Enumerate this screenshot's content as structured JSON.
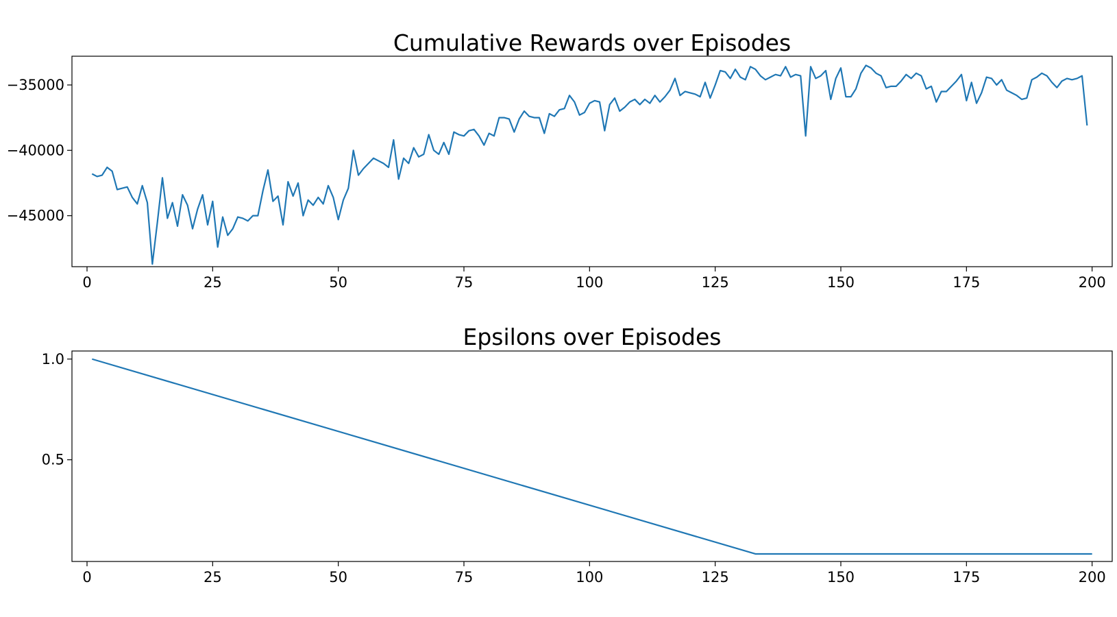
{
  "colors": {
    "series": "#1f77b4",
    "axes": "#000000",
    "background": "#ffffff"
  },
  "chart_data": [
    {
      "type": "line",
      "title": "Cumulative Rewards over Episodes",
      "xlabel": "",
      "ylabel": "",
      "xlim": [
        -3,
        204
      ],
      "ylim": [
        -48900,
        -32800
      ],
      "xticks": [
        0,
        25,
        50,
        75,
        100,
        125,
        150,
        175,
        200
      ],
      "yticks": [
        -45000,
        -40000,
        -35000
      ],
      "ytick_labels": [
        "−45000",
        "−40000",
        "−35000"
      ],
      "grid": false,
      "legend": "none",
      "series": [
        {
          "x_start": 1,
          "x_step": 1,
          "values": [
            -41800,
            -42000,
            -41900,
            -41300,
            -41600,
            -43000,
            -42900,
            -42800,
            -43600,
            -44100,
            -42700,
            -44000,
            -48700,
            -45500,
            -42100,
            -45200,
            -44000,
            -45800,
            -43400,
            -44200,
            -46000,
            -44500,
            -43400,
            -45700,
            -43900,
            -47400,
            -45100,
            -46500,
            -46000,
            -45100,
            -45200,
            -45400,
            -45000,
            -45000,
            -43100,
            -41500,
            -43900,
            -43500,
            -45700,
            -42400,
            -43500,
            -42500,
            -45000,
            -43800,
            -44200,
            -43600,
            -44100,
            -42700,
            -43600,
            -45300,
            -43800,
            -42900,
            -40000,
            -41900,
            -41400,
            -41000,
            -40600,
            -40800,
            -41000,
            -41300,
            -39200,
            -42200,
            -40600,
            -41000,
            -39800,
            -40500,
            -40300,
            -38800,
            -40000,
            -40300,
            -39400,
            -40300,
            -38600,
            -38800,
            -38900,
            -38500,
            -38400,
            -38900,
            -39600,
            -38700,
            -38900,
            -37500,
            -37500,
            -37600,
            -38600,
            -37600,
            -37000,
            -37400,
            -37500,
            -37500,
            -38700,
            -37200,
            -37400,
            -36900,
            -36800,
            -35800,
            -36300,
            -37300,
            -37100,
            -36400,
            -36200,
            -36300,
            -38500,
            -36500,
            -36000,
            -37000,
            -36700,
            -36300,
            -36100,
            -36500,
            -36100,
            -36400,
            -35800,
            -36300,
            -35900,
            -35400,
            -34500,
            -35800,
            -35500,
            -35600,
            -35700,
            -35900,
            -34800,
            -36000,
            -35000,
            -33900,
            -34000,
            -34500,
            -33800,
            -34400,
            -34600,
            -33600,
            -33800,
            -34300,
            -34600,
            -34400,
            -34200,
            -34300,
            -33600,
            -34400,
            -34200,
            -34300,
            -38900,
            -33600,
            -34500,
            -34300,
            -33900,
            -36100,
            -34500,
            -33700,
            -35900,
            -35900,
            -35300,
            -34100,
            -33500,
            -33700,
            -34100,
            -34300,
            -35200,
            -35100,
            -35100,
            -34700,
            -34200,
            -34500,
            -34100,
            -34300,
            -35300,
            -35100,
            -36300,
            -35500,
            -35500,
            -35100,
            -34700,
            -34200,
            -36200,
            -34800,
            -36400,
            -35600,
            -34400,
            -34500,
            -35000,
            -34600,
            -35400,
            -35600,
            -35800,
            -36100,
            -36000,
            -34600,
            -34400,
            -34100,
            -34300,
            -34800,
            -35200,
            -34700,
            -34500,
            -34600,
            -34500,
            -34300,
            -38100
          ]
        }
      ]
    },
    {
      "type": "line",
      "title": "Epsilons over Episodes",
      "xlabel": "",
      "ylabel": "",
      "xlim": [
        -3,
        204
      ],
      "ylim": [
        -0.005,
        1.04
      ],
      "xticks": [
        0,
        25,
        50,
        75,
        100,
        125,
        150,
        175,
        200
      ],
      "yticks": [
        0.5,
        1.0
      ],
      "ytick_labels": [
        "0.5",
        "1.0"
      ],
      "grid": false,
      "legend": "none",
      "series": [
        {
          "x": [
            1,
            133,
            134,
            200
          ],
          "values": [
            1.0,
            0.0325,
            0.0325,
            0.0325
          ]
        }
      ]
    }
  ]
}
